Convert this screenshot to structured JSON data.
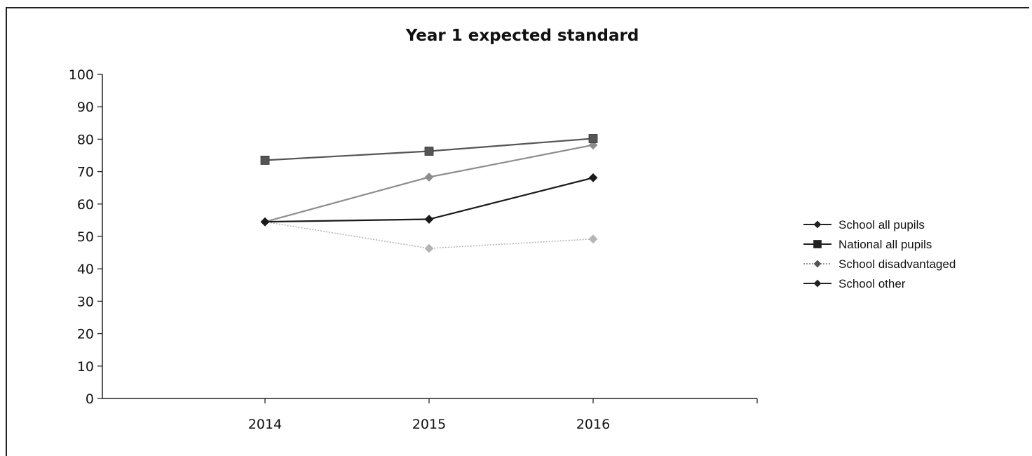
{
  "chart_data": {
    "type": "line",
    "title": "Year 1 expected standard",
    "xlabel": "",
    "ylabel": "",
    "categories": [
      "2014",
      "2015",
      "2016"
    ],
    "ylim": [
      0,
      100
    ],
    "yticks": [
      0,
      10,
      20,
      30,
      40,
      50,
      60,
      70,
      80,
      90,
      100
    ],
    "grid": false,
    "legend_position": "right",
    "series": [
      {
        "name": "School all pupils",
        "values": [
          54.5,
          55.3,
          68.1
        ],
        "color": "#1a1a1a",
        "marker": "diamond",
        "line_style": "solid"
      },
      {
        "name": "National all pupils",
        "values": [
          73.5,
          76.3,
          80.2
        ],
        "color": "#555555",
        "marker": "square",
        "line_style": "solid"
      },
      {
        "name": "School disadvantaged",
        "values": [
          54.5,
          46.3,
          49.2
        ],
        "color": "#b5b5b5",
        "marker": "diamond",
        "line_style": "dotted"
      },
      {
        "name": "School other",
        "values": [
          54.5,
          68.3,
          78.2
        ],
        "color": "#8c8c8c",
        "marker": "diamond",
        "line_style": "solid"
      }
    ]
  }
}
